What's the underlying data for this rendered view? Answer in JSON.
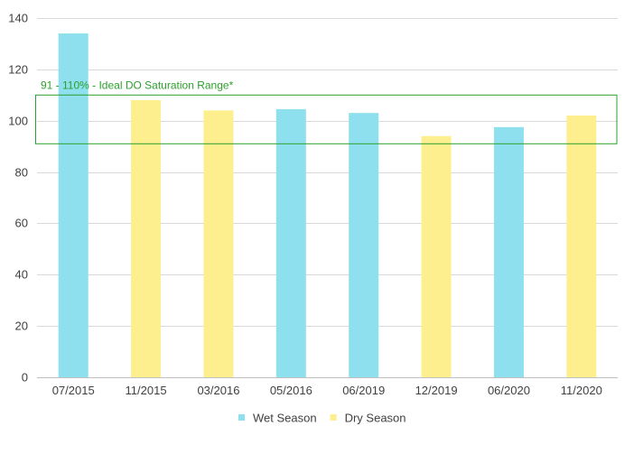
{
  "chart_data": {
    "type": "bar",
    "categories": [
      "07/2015",
      "11/2015",
      "03/2016",
      "05/2016",
      "06/2019",
      "12/2019",
      "06/2020",
      "11/2020"
    ],
    "values": [
      134,
      108,
      104,
      104.5,
      103,
      94,
      97.5,
      102
    ],
    "season": [
      "wet",
      "dry",
      "dry",
      "wet",
      "wet",
      "dry",
      "wet",
      "dry"
    ],
    "ylim": [
      0,
      140
    ],
    "yticks": [
      0,
      20,
      40,
      60,
      80,
      100,
      120,
      140
    ],
    "grid": true,
    "legend_position": "bottom",
    "series": [
      {
        "key": "wet",
        "name": "Wet Season",
        "color": "#8ee0ee"
      },
      {
        "key": "dry",
        "name": "Dry Season",
        "color": "#fdee8e"
      }
    ],
    "annotation": {
      "text": "91 - 110% - Ideal DO Saturation Range*",
      "range": [
        91,
        110
      ],
      "color": "#2ca02c"
    }
  }
}
